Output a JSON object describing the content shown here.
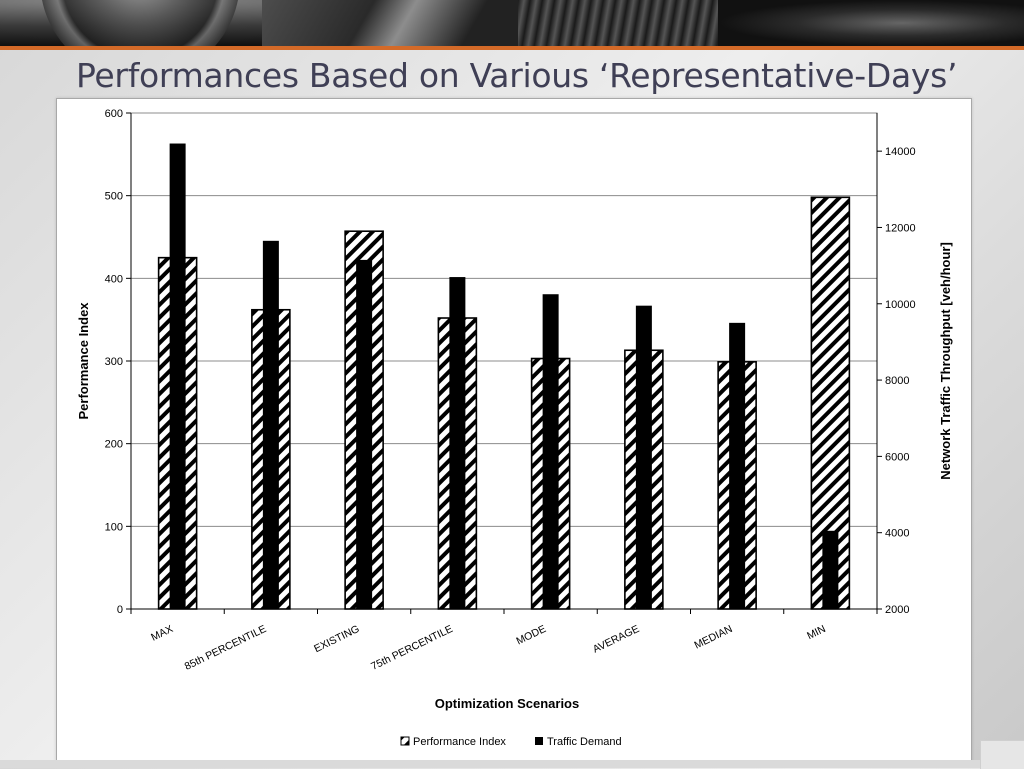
{
  "slide": {
    "title": "Performances Based on Various ‘Representative-Days’"
  },
  "chart_data": {
    "type": "bar",
    "title": "",
    "xlabel": "Optimization Scenarios",
    "ylabel": "Performance Index",
    "y2label": "Network Traffic Throughput [veh/hour]",
    "ylim": [
      0,
      600
    ],
    "y2lim": [
      2000,
      15000
    ],
    "yticks": [
      "0",
      "100",
      "200",
      "300",
      "400",
      "500",
      "600"
    ],
    "y2ticks": [
      "2000",
      "4000",
      "6000",
      "8000",
      "10000",
      "12000",
      "14000"
    ],
    "grid": true,
    "legend_position": "bottom",
    "categories": [
      "MAX",
      "85th PERCENTILE",
      "EXISTING",
      "75th PERCENTILE",
      "MODE",
      "AVERAGE",
      "MEDIAN",
      "MIN"
    ],
    "series": [
      {
        "name": "Performance Index",
        "axis": "left",
        "pattern": "diagonal-hatch",
        "color": "#000000",
        "values": [
          425,
          362,
          457,
          352,
          303,
          313,
          299,
          498
        ]
      },
      {
        "name": "Traffic Demand",
        "axis": "right",
        "pattern": "solid",
        "color": "#000000",
        "values": [
          14200,
          11650,
          11150,
          10700,
          10250,
          9950,
          9500,
          4050
        ]
      }
    ]
  }
}
